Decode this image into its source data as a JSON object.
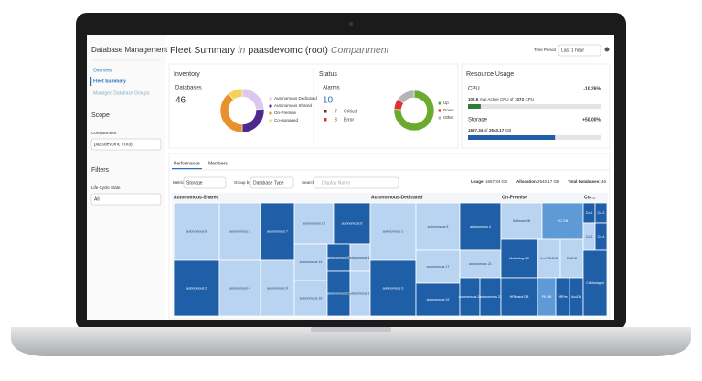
{
  "sidebar": {
    "title": "Database Management",
    "nav": [
      "Overview",
      "Fleet Summary",
      "Managed Database Groups"
    ],
    "scope": {
      "heading": "Scope",
      "field_label": "Compartment",
      "value": "paasdevomc (root)"
    },
    "filters": {
      "heading": "Filters",
      "field_label": "Life Cycle State",
      "value": "All"
    }
  },
  "header": {
    "title": "Fleet Summary",
    "in": "in",
    "compartment": "paasdevomc (root)",
    "suffix": "Compartment",
    "time_label": "Time Period",
    "time_value": "Last 1 hour"
  },
  "inventory": {
    "heading": "Inventory",
    "label": "Databases",
    "count": 46,
    "segments": [
      {
        "name": "Autonomous Dedicated",
        "value": 11,
        "color": "#dcc8ef"
      },
      {
        "name": "Autonomous Shared",
        "value": 12,
        "color": "#4b2a8c"
      },
      {
        "name": "On-Premise",
        "value": 18,
        "color": "#e8902c"
      },
      {
        "name": "Co-managed",
        "value": 5,
        "color": "#f3d25a"
      }
    ]
  },
  "status": {
    "heading": "Status",
    "alarms_label": "Alarms",
    "alarms": 10,
    "levels": [
      {
        "count": 7,
        "name": "Critical",
        "color": "#8b1a1a"
      },
      {
        "count": 3,
        "name": "Error",
        "color": "#e03030"
      }
    ],
    "segments": [
      {
        "name": "Up",
        "value": 35,
        "color": "#6aab2e"
      },
      {
        "name": "Down",
        "value": 4,
        "color": "#e03030"
      },
      {
        "name": "Other",
        "value": 7,
        "color": "#b5b5b5"
      }
    ]
  },
  "resources": {
    "heading": "Resource Usage",
    "cpu": {
      "label": "CPU",
      "change": "-10.26%",
      "used": 102.6,
      "used_text": "Avg Active CPU of",
      "total": 1073,
      "unit": "CPU",
      "color": "#2e7d32"
    },
    "storage": {
      "label": "Storage",
      "change": "+50.00%",
      "used": 1667.34,
      "used_text": "of",
      "total": 2540.17,
      "unit": "GB",
      "color": "#1f5fa8"
    }
  },
  "tabs": [
    "Performance",
    "Members"
  ],
  "toolbar": {
    "metric_label": "Metric",
    "metric": "Storage",
    "group_label": "Group by",
    "group": "Database Type",
    "search_label": "Search",
    "search_placeholder": "Display Name",
    "usage_label": "Usage:",
    "usage": "1667.34 GB",
    "allocation_label": "Allocation:",
    "allocation": "2540.17 GB",
    "total_label": "Total Databases:",
    "total": 46
  },
  "treemap": {
    "groups": [
      {
        "name": "Autonomous-Shared",
        "tiles": [
          {
            "label": "autonomous 8",
            "shade": "light"
          },
          {
            "label": "autonomous 3",
            "shade": "light"
          },
          {
            "label": "autonomous 7",
            "shade": "dark"
          },
          {
            "label": "autonomous 2",
            "shade": "dark"
          },
          {
            "label": "autonomous 4",
            "shade": "light"
          },
          {
            "label": "autonomous 9",
            "shade": "light"
          },
          {
            "label": "autonomous 10",
            "shade": "light"
          },
          {
            "label": "autonomous 6",
            "shade": "dark"
          },
          {
            "label": "autonomous 14",
            "shade": "light"
          },
          {
            "label": "autonomous 11",
            "shade": "dark"
          },
          {
            "label": "autonomous 13",
            "shade": "light"
          },
          {
            "label": "autonomous 16",
            "shade": "light"
          },
          {
            "label": "autonomous 12",
            "shade": "dark"
          },
          {
            "label": "autonomous 15",
            "shade": "light"
          }
        ]
      },
      {
        "name": "Autonomous-Dedicated",
        "tiles": [
          {
            "label": "autonomous 1",
            "shade": "light"
          },
          {
            "label": "autonomous 5",
            "shade": "light"
          },
          {
            "label": "autonomous 4",
            "shade": "dark"
          },
          {
            "label": "autonomous 3",
            "shade": "dark"
          },
          {
            "label": "autonomous 17",
            "shade": "light"
          },
          {
            "label": "autonomous 21",
            "shade": "light"
          },
          {
            "label": "autonomous 19",
            "shade": "dark"
          },
          {
            "label": "autonomous 22",
            "shade": "dark"
          },
          {
            "label": "autonomous 23",
            "shade": "dark"
          }
        ]
      },
      {
        "name": "On-Premise",
        "tiles": [
          {
            "label": "SoftwareDB",
            "shade": "light"
          },
          {
            "label": "RC DB",
            "shade": "medium"
          },
          {
            "label": "Marketing DB",
            "shade": "dark"
          },
          {
            "label": "AccCRMDB",
            "shade": "light"
          },
          {
            "label": "SoftDB",
            "shade": "light"
          },
          {
            "label": "HRBrand DB",
            "shade": "dark"
          },
          {
            "label": "PK DB",
            "shade": "medium"
          },
          {
            "label": "HRPer",
            "shade": "dark"
          },
          {
            "label": "AccDB",
            "shade": "dark"
          }
        ]
      },
      {
        "name": "Co-...",
        "tiles": [
          {
            "label": "Co-1",
            "shade": "dark"
          },
          {
            "label": "Co-2",
            "shade": "dark"
          },
          {
            "label": "Co-3",
            "shade": "light"
          },
          {
            "label": "Co-4",
            "shade": "dark"
          },
          {
            "label": "CoManaged",
            "shade": "dark"
          }
        ]
      }
    ]
  }
}
